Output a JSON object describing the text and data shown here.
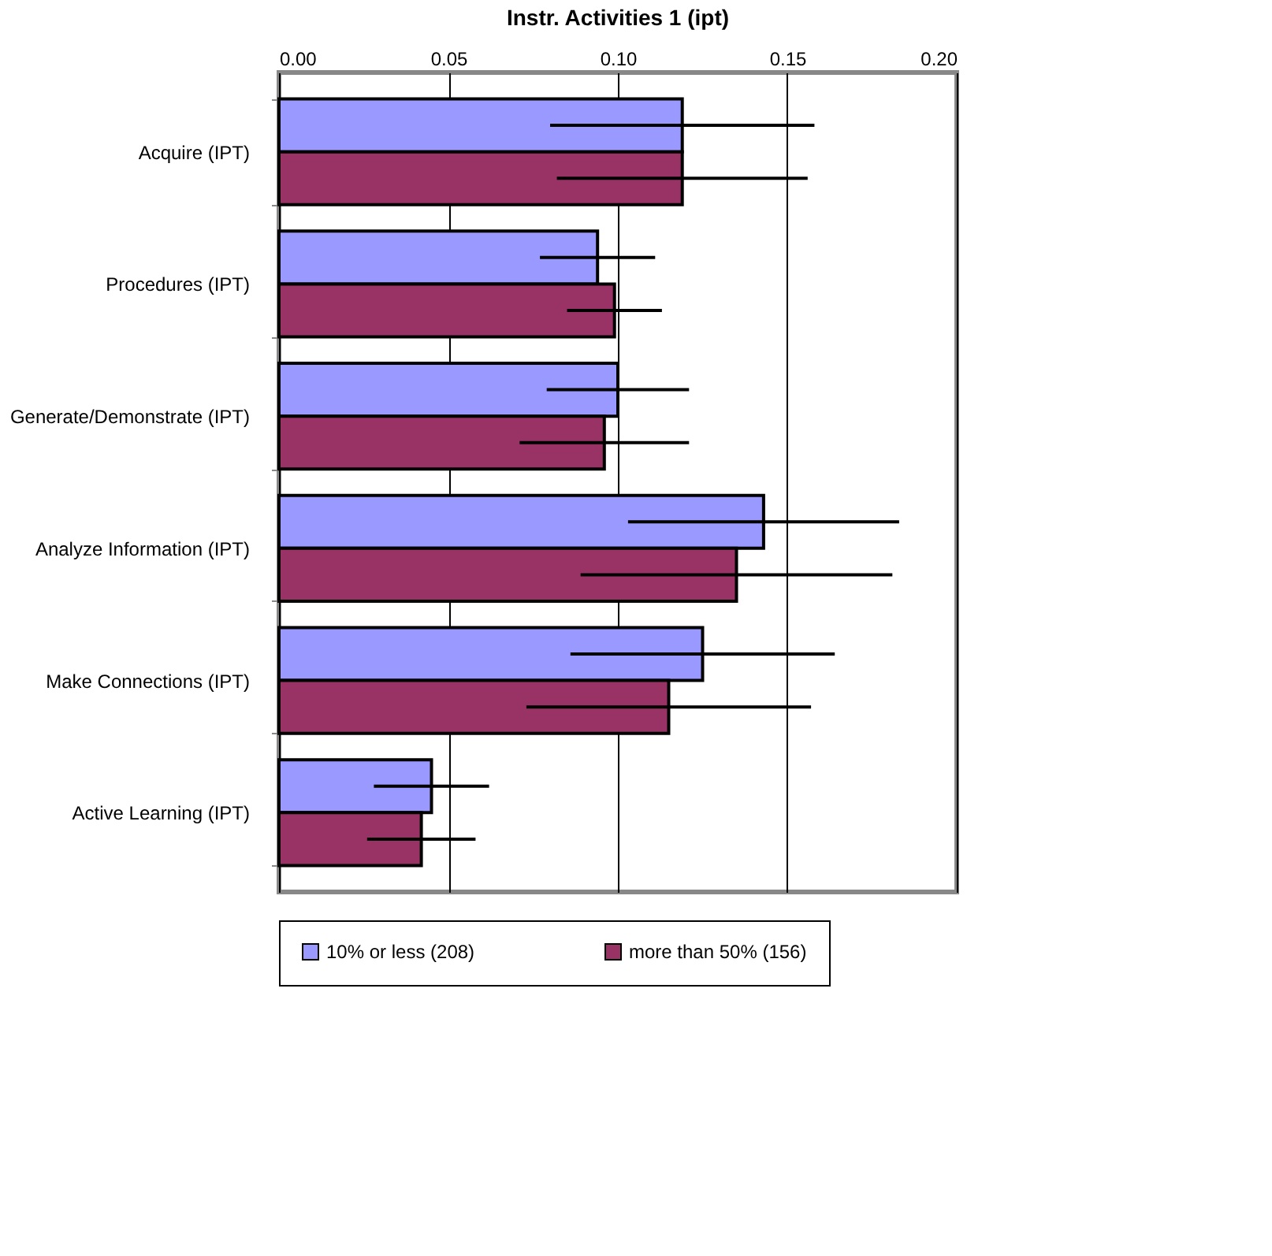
{
  "chart_data": {
    "type": "bar",
    "orientation": "horizontal",
    "title": "Instr. Activities 1 (ipt)",
    "categories": [
      "Acquire (IPT)",
      "Procedures (IPT)",
      "Generate/Demonstrate (IPT)",
      "Analyze Information (IPT)",
      "Make Connections (IPT)",
      "Active Learning (IPT)"
    ],
    "series": [
      {
        "name": "10% or less (208)",
        "color": "#9999ff",
        "values": [
          0.119,
          0.094,
          0.1,
          0.143,
          0.125,
          0.045
        ],
        "errors": [
          0.039,
          0.017,
          0.021,
          0.04,
          0.039,
          0.017
        ]
      },
      {
        "name": "more than 50% (156)",
        "color": "#993366",
        "values": [
          0.119,
          0.099,
          0.096,
          0.135,
          0.115,
          0.042
        ],
        "errors": [
          0.037,
          0.014,
          0.025,
          0.046,
          0.042,
          0.016
        ]
      }
    ],
    "xlim": [
      0,
      0.2
    ],
    "xticks": [
      {
        "value": 0,
        "label": "0.00"
      },
      {
        "value": 0.05,
        "label": "0.05"
      },
      {
        "value": 0.1,
        "label": "0.10"
      },
      {
        "value": 0.15,
        "label": "0.15"
      },
      {
        "value": 0.2,
        "label": "0.20"
      }
    ],
    "grid": "x",
    "legend": "bottom"
  }
}
